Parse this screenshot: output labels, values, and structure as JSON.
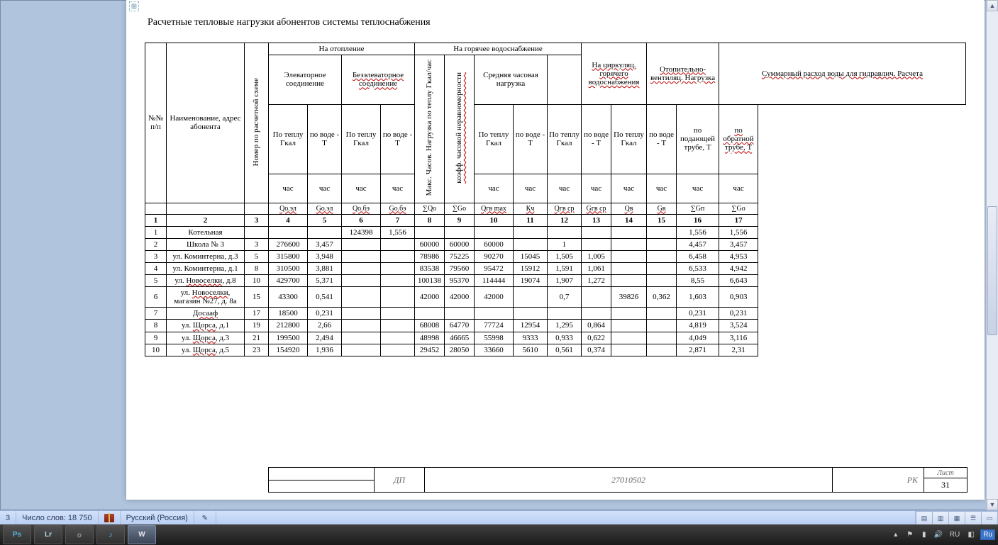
{
  "document": {
    "title_text": "Расчетные тепловые нагрузки абонентов системы теплоснабжения",
    "headers": {
      "col_num": "№№ п/п",
      "col_name": "Наименование, адрес абонента",
      "col_scheme": "Номер по расчетной схеме",
      "group_heating": "На отопление",
      "sub_elev": "Элеваторное соединение",
      "sub_noelev": "Безэлеваторное соединение",
      "group_hotwater": "На горячее водоснабжение",
      "col8": "Макс. Часов. Нагрузка по теплу Гкал/час",
      "col9": "коэфф. часовой неравномерности",
      "sub_avg": "Средняя часовая нагрузка",
      "group_circ": "На циркуляц. горячего водоснабжения",
      "group_vent": "Отопительно-вентиляц. Нагрузка",
      "group_sum": "Суммарный расход воды для гидравлич. Расчета",
      "by_heat": "По теплу Гкал",
      "by_water": "по воде - Т",
      "sum_supply": "по подающей трубе, Т",
      "sum_return": "по обратной трубе, Т",
      "unit_hour": "час",
      "s4": "Qо.эл",
      "s5": "Gо.эл",
      "s6": "Qо.бэ",
      "s7": "Gо.бэ",
      "s8": "∑Qо",
      "s9": "∑Gо",
      "s10": "Qгв max",
      "s11": "Кч",
      "s12": "Qгв ср",
      "s13": "Gгв ср",
      "s14": "Qв",
      "s15": "Gв",
      "s16": "∑Gп",
      "s17": "∑Go"
    },
    "num_header": [
      "1",
      "2",
      "3",
      "4",
      "5",
      "6",
      "7",
      "8",
      "9",
      "10",
      "11",
      "12",
      "13",
      "14",
      "15",
      "16",
      "17"
    ],
    "rows": [
      {
        "n": "1",
        "name": "Котельная",
        "c3": "",
        "c4": "",
        "c5": "",
        "c6": "124398",
        "c7": "1,556",
        "c8": "",
        "c9": "",
        "c10": "",
        "c11": "",
        "c12": "",
        "c13": "",
        "c14": "",
        "c15": "",
        "c16": "1,556",
        "c17": "1,556"
      },
      {
        "n": "2",
        "name": "Школа № 3",
        "c3": "3",
        "c4": "276600",
        "c5": "3,457",
        "c6": "",
        "c7": "",
        "c8": "60000",
        "c9": "60000",
        "c10": "60000",
        "c11": "",
        "c12": "1",
        "c13": "",
        "c14": "",
        "c15": "",
        "c16": "4,457",
        "c17": "3,457"
      },
      {
        "n": "3",
        "name": "ул. Коминтерна, д.3",
        "c3": "5",
        "c4": "315800",
        "c5": "3,948",
        "c6": "",
        "c7": "",
        "c8": "78986",
        "c9": "75225",
        "c10": "90270",
        "c11": "15045",
        "c12": "1,505",
        "c13": "1,005",
        "c14": "",
        "c15": "",
        "c16": "6,458",
        "c17": "4,953"
      },
      {
        "n": "4",
        "name": "ул. Коминтерна, д.1",
        "c3": "8",
        "c4": "310500",
        "c5": "3,881",
        "c6": "",
        "c7": "",
        "c8": "83538",
        "c9": "79560",
        "c10": "95472",
        "c11": "15912",
        "c12": "1,591",
        "c13": "1,061",
        "c14": "",
        "c15": "",
        "c16": "6,533",
        "c17": "4,942"
      },
      {
        "n": "5",
        "name": "ул. Новоселки, д.8",
        "c3": "10",
        "c4": "429700",
        "c5": "5,371",
        "c6": "",
        "c7": "",
        "c8": "100138",
        "c9": "95370",
        "c10": "114444",
        "c11": "19074",
        "c12": "1,907",
        "c13": "1,272",
        "c14": "",
        "c15": "",
        "c16": "8,55",
        "c17": "6,643"
      },
      {
        "n": "6",
        "name": "ул. Новоселки, магазин №27, д. 8а",
        "c3": "15",
        "c4": "43300",
        "c5": "0,541",
        "c6": "",
        "c7": "",
        "c8": "42000",
        "c9": "42000",
        "c10": "42000",
        "c11": "",
        "c12": "0,7",
        "c13": "",
        "c14": "39826",
        "c15": "0,362",
        "c16": "1,603",
        "c17": "0,903"
      },
      {
        "n": "7",
        "name": "Досааф",
        "c3": "17",
        "c4": "18500",
        "c5": "0,231",
        "c6": "",
        "c7": "",
        "c8": "",
        "c9": "",
        "c10": "",
        "c11": "",
        "c12": "",
        "c13": "",
        "c14": "",
        "c15": "",
        "c16": "0,231",
        "c17": "0,231"
      },
      {
        "n": "8",
        "name": "ул. Щорса, д.1",
        "c3": "19",
        "c4": "212800",
        "c5": "2,66",
        "c6": "",
        "c7": "",
        "c8": "68008",
        "c9": "64770",
        "c10": "77724",
        "c11": "12954",
        "c12": "1,295",
        "c13": "0,864",
        "c14": "",
        "c15": "",
        "c16": "4,819",
        "c17": "3,524"
      },
      {
        "n": "9",
        "name": "ул. Щорса, д.3",
        "c3": "21",
        "c4": "199500",
        "c5": "2,494",
        "c6": "",
        "c7": "",
        "c8": "48998",
        "c9": "46665",
        "c10": "55998",
        "c11": "9333",
        "c12": "0,933",
        "c13": "0,622",
        "c14": "",
        "c15": "",
        "c16": "4,049",
        "c17": "3,116"
      },
      {
        "n": "10",
        "name": "ул. Щорса, д.5",
        "c3": "23",
        "c4": "154920",
        "c5": "1,936",
        "c6": "",
        "c7": "",
        "c8": "29452",
        "c9": "28050",
        "c10": "33660",
        "c11": "5610",
        "c12": "0,561",
        "c13": "0,374",
        "c14": "",
        "c15": "",
        "c16": "2,871",
        "c17": "2,31"
      }
    ],
    "spell_errors": [
      "Новоселки",
      "Досааф",
      "Щорса"
    ],
    "stamp": {
      "dp": "ДП",
      "code": "27010502",
      "rk": "РК",
      "page_label": "Лист",
      "page_number": "31"
    }
  },
  "statusbar": {
    "word_count_label": "Число слов: 18 750",
    "language": "Русский (Россия)",
    "section": "3"
  },
  "taskbar": {
    "pinned": [
      "ps-icon",
      "lr-icon",
      "sun-icon",
      "itunes-icon",
      "word-icon"
    ],
    "tray": {
      "lang_short": "RU",
      "lang_flag": "Ru"
    }
  },
  "colors": {
    "page_bg": "#ffffff",
    "doc_area_bg": "#b0c4de",
    "statusbar_bg": "#c4d7f5",
    "taskbar_bg": "#2a2a2a",
    "border": "#000000",
    "spell_wave": "#c00000"
  }
}
